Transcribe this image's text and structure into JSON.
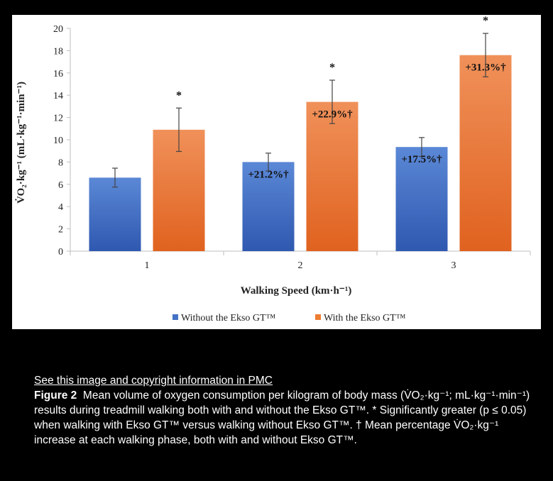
{
  "chart_data": {
    "type": "bar",
    "categories": [
      "1",
      "2",
      "3"
    ],
    "series": [
      {
        "name": "Without the Ekso GT™",
        "values": [
          6.6,
          8.0,
          9.35
        ],
        "error": [
          0.85,
          0.8,
          0.85
        ],
        "color": "#4472c4"
      },
      {
        "name": "With the Ekso GT™",
        "values": [
          10.9,
          13.4,
          17.6
        ],
        "error": [
          1.95,
          1.95,
          1.95
        ],
        "color": "#ed7d31"
      }
    ],
    "increase_labels": [
      "+21.2%†",
      "+22.9%†",
      "+17.5%†",
      "+31.3%†"
    ],
    "significance_marker": "*",
    "xlabel": "Walking Speed (km·h⁻¹)",
    "ylabel": "V̇O₂·kg⁻¹ (mL·kg⁻¹·min⁻¹)",
    "ylim": [
      0,
      20
    ],
    "yticks": [
      "0",
      "2",
      "4",
      "6",
      "8",
      "10",
      "12",
      "14",
      "16",
      "18",
      "20"
    ],
    "grid": false,
    "legend_position": "bottom"
  },
  "caption": {
    "link_text": "See this image and copyright information in PMC",
    "figure_label": "Figure 2",
    "text": "Mean volume of oxygen consumption per kilogram of body mass (V̇O₂·kg⁻¹; mL·kg⁻¹·min⁻¹) results during treadmill walking both with and without the Ekso GT™. * Significantly greater (p ≤ 0.05) when walking with Ekso GT™ versus walking without Ekso GT™. † Mean percentage V̇O₂·kg⁻¹ increase at each walking phase, both with and without Ekso GT™."
  }
}
